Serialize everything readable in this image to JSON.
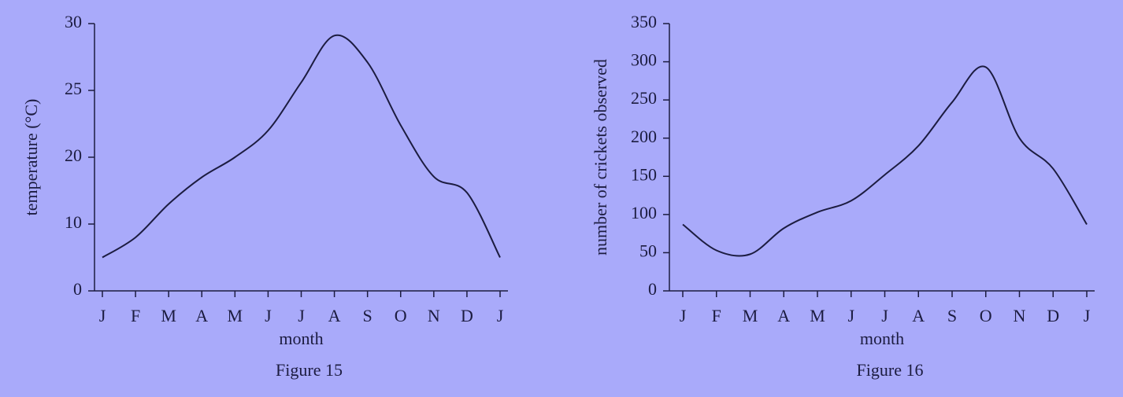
{
  "chart_data": [
    {
      "type": "line",
      "title": "Figure 15",
      "xlabel": "month",
      "ylabel": "temperature (°C)",
      "categories": [
        "J",
        "F",
        "M",
        "A",
        "M",
        "J",
        "J",
        "A",
        "S",
        "O",
        "N",
        "D",
        "J"
      ],
      "values": [
        5,
        8,
        13,
        17,
        20,
        22,
        25.6,
        29.1,
        27.1,
        22.4,
        17.1,
        14.7,
        5
      ],
      "color": "#1c1c40",
      "ylim": [
        0,
        30
      ],
      "yticks": [
        0,
        10,
        20,
        25,
        30
      ]
    },
    {
      "type": "line",
      "title": "Figure 16",
      "xlabel": "month",
      "ylabel": "number of crickets observed",
      "categories": [
        "J",
        "F",
        "M",
        "A",
        "M",
        "J",
        "J",
        "A",
        "S",
        "O",
        "N",
        "D",
        "J"
      ],
      "values": [
        87,
        53,
        48,
        82,
        103,
        118,
        152,
        190,
        247,
        293,
        200,
        160,
        87
      ],
      "color": "#1c1c40",
      "ylim": [
        0,
        350
      ],
      "yticks": [
        0,
        50,
        100,
        150,
        200,
        250,
        300,
        350
      ]
    }
  ]
}
